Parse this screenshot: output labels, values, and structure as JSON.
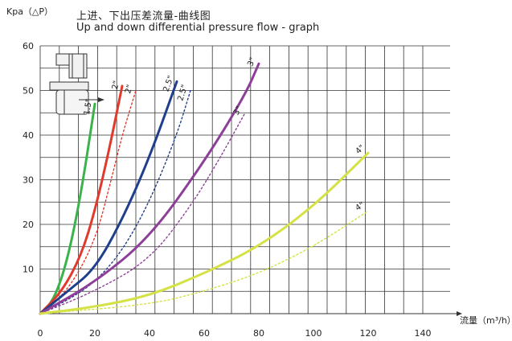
{
  "header": {
    "title_cn": "上进、下出压差流量-曲线图",
    "title_en": "Up and down differential pressure flow - graph"
  },
  "chart_data": {
    "type": "line",
    "ylabel": "Kpa（△P）",
    "xlabel": "流量（m³/h）",
    "xlim": [
      0,
      140
    ],
    "ylim": [
      0,
      60
    ],
    "xticks": [
      0,
      20,
      40,
      60,
      80,
      100,
      120,
      140
    ],
    "yticks": [
      10,
      20,
      30,
      40,
      50,
      60
    ],
    "grid": true,
    "series": [
      {
        "name": "1.5\"",
        "color": "#3cb34a",
        "style": "solid",
        "points": [
          [
            0,
            0
          ],
          [
            5,
            3
          ],
          [
            10,
            12
          ],
          [
            15,
            27
          ],
          [
            20,
            47
          ]
        ]
      },
      {
        "name": "2\"",
        "color": "#e03a2c",
        "style": "solid",
        "points": [
          [
            0,
            0
          ],
          [
            8,
            5
          ],
          [
            15,
            13
          ],
          [
            20,
            23
          ],
          [
            25,
            36
          ],
          [
            30,
            51
          ]
        ]
      },
      {
        "name": "2\"",
        "color": "#e03a2c",
        "style": "dotted",
        "points": [
          [
            0,
            0
          ],
          [
            10,
            5
          ],
          [
            20,
            16
          ],
          [
            26,
            30
          ],
          [
            30,
            40
          ],
          [
            35,
            50
          ]
        ]
      },
      {
        "name": "2.5\"",
        "color": "#1f3e8c",
        "style": "solid",
        "points": [
          [
            0,
            0
          ],
          [
            10,
            5
          ],
          [
            20,
            10
          ],
          [
            30,
            21
          ],
          [
            40,
            35
          ],
          [
            50,
            52
          ]
        ]
      },
      {
        "name": "2.5\"",
        "color": "#1f3e8c",
        "style": "dotted",
        "points": [
          [
            0,
            0
          ],
          [
            10,
            3
          ],
          [
            20,
            7
          ],
          [
            30,
            14
          ],
          [
            40,
            25
          ],
          [
            50,
            40
          ],
          [
            55,
            50
          ]
        ]
      },
      {
        "name": "3\"",
        "color": "#8e3f99",
        "style": "solid",
        "points": [
          [
            0,
            0
          ],
          [
            20,
            7
          ],
          [
            40,
            17
          ],
          [
            60,
            34
          ],
          [
            75,
            49
          ],
          [
            80,
            56
          ]
        ]
      },
      {
        "name": "3\"",
        "color": "#8e3f99",
        "style": "dotted",
        "points": [
          [
            0,
            0
          ],
          [
            20,
            5
          ],
          [
            40,
            12
          ],
          [
            55,
            24
          ],
          [
            65,
            34
          ],
          [
            75,
            45
          ]
        ]
      },
      {
        "name": "4\"",
        "color": "#d4e246",
        "style": "solid",
        "points": [
          [
            0,
            0
          ],
          [
            20,
            1.5
          ],
          [
            40,
            4
          ],
          [
            60,
            9
          ],
          [
            80,
            15
          ],
          [
            100,
            24
          ],
          [
            120,
            36
          ]
        ]
      },
      {
        "name": "4\"",
        "color": "#d4e246",
        "style": "dotted",
        "points": [
          [
            0,
            0
          ],
          [
            40,
            2
          ],
          [
            60,
            5
          ],
          [
            80,
            9
          ],
          [
            100,
            15
          ],
          [
            120,
            23
          ]
        ]
      }
    ]
  }
}
